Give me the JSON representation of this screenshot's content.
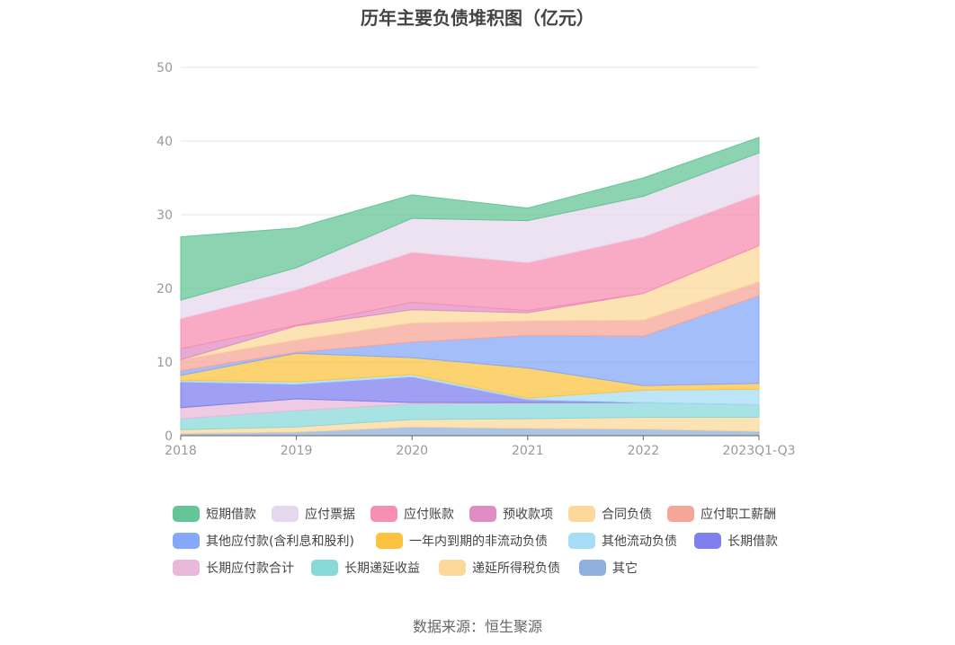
{
  "title": "历年主要负债堆积图（亿元）",
  "source": "数据来源：恒生聚源",
  "chart_data": {
    "type": "area",
    "stacked": true,
    "title": "历年主要负债堆积图（亿元）",
    "categories": [
      "2018",
      "2019",
      "2020",
      "2021",
      "2022",
      "2023Q1-Q3"
    ],
    "ylim": [
      0,
      50
    ],
    "yticks": [
      0,
      10,
      20,
      30,
      40,
      50
    ],
    "grid": true,
    "legend_position": "bottom",
    "series": [
      {
        "name": "其它",
        "color": "#8fb0dc",
        "values": [
          0.3,
          0.5,
          1.2,
          1.0,
          0.9,
          0.6
        ]
      },
      {
        "name": "递延所得税负债",
        "color": "#fcd89a",
        "values": [
          0.5,
          0.7,
          1.0,
          1.3,
          1.6,
          1.9
        ]
      },
      {
        "name": "长期递延收益",
        "color": "#8ad9d9",
        "values": [
          1.5,
          2.2,
          2.1,
          2.1,
          2.0,
          1.7
        ]
      },
      {
        "name": "长期应付款合计",
        "color": "#e8b9da",
        "values": [
          1.5,
          1.6,
          0.2,
          0.1,
          0.0,
          0.0
        ]
      },
      {
        "name": "长期借款",
        "color": "#7f7ff0",
        "values": [
          3.5,
          2.0,
          3.5,
          0.4,
          0.0,
          0.0
        ]
      },
      {
        "name": "其他流动负债",
        "color": "#a6dcf6",
        "values": [
          0.2,
          0.3,
          0.3,
          0.2,
          1.7,
          2.1
        ]
      },
      {
        "name": "一年内到期的非流动负债",
        "color": "#fcc341",
        "values": [
          0.7,
          3.9,
          2.3,
          4.1,
          0.6,
          0.8
        ]
      },
      {
        "name": "其他应付款(含利息和股利)",
        "color": "#86a8f8",
        "values": [
          0.6,
          0.1,
          2.1,
          4.4,
          6.7,
          11.9
        ]
      },
      {
        "name": "应付职工薪酬",
        "color": "#f6a59a",
        "values": [
          1.5,
          1.7,
          2.6,
          2.0,
          2.2,
          1.9
        ]
      },
      {
        "name": "合同负债",
        "color": "#fcd89a",
        "values": [
          0.0,
          1.9,
          1.8,
          1.1,
          3.6,
          4.9
        ]
      },
      {
        "name": "预收款项",
        "color": "#e08dc3",
        "values": [
          1.5,
          0.1,
          1.0,
          0.3,
          0.0,
          0.0
        ]
      },
      {
        "name": "应付账款",
        "color": "#f78fb3",
        "values": [
          4.1,
          4.8,
          6.8,
          6.5,
          7.7,
          7.0
        ]
      },
      {
        "name": "应付票据",
        "color": "#e6d8ec",
        "values": [
          2.5,
          3.0,
          4.6,
          5.7,
          5.5,
          5.6
        ]
      },
      {
        "name": "短期借款",
        "color": "#65c597",
        "values": [
          8.6,
          5.4,
          3.2,
          1.7,
          2.5,
          2.1
        ]
      }
    ]
  },
  "legend": [
    {
      "label": "短期借款",
      "color": "#65c597"
    },
    {
      "label": "应付票据",
      "color": "#e6d8ec"
    },
    {
      "label": "应付账款",
      "color": "#f78fb3"
    },
    {
      "label": "预收款项",
      "color": "#e08dc3"
    },
    {
      "label": "合同负债",
      "color": "#fcd89a"
    },
    {
      "label": "应付职工薪酬",
      "color": "#f6a59a"
    },
    {
      "label": "其他应付款(含利息和股利)",
      "color": "#86a8f8"
    },
    {
      "label": "一年内到期的非流动负债",
      "color": "#fcc341"
    },
    {
      "label": "其他流动负债",
      "color": "#a6dcf6"
    },
    {
      "label": "长期借款",
      "color": "#7f7ff0"
    },
    {
      "label": "长期应付款合计",
      "color": "#e8b9da"
    },
    {
      "label": "长期递延收益",
      "color": "#8ad9d9"
    },
    {
      "label": "递延所得税负债",
      "color": "#fcd89a"
    },
    {
      "label": "其它",
      "color": "#8fb0dc"
    }
  ]
}
